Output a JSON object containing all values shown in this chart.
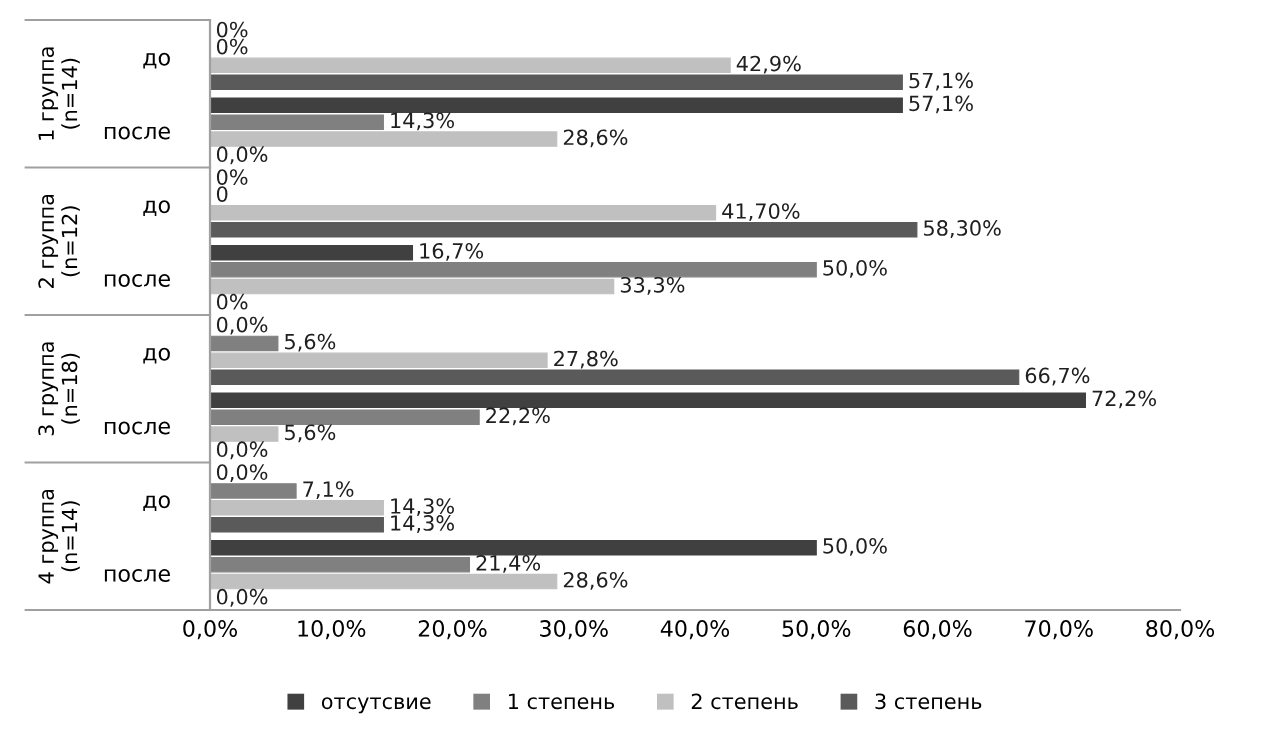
{
  "chart_data": {
    "type": "bar",
    "orientation": "horizontal",
    "categories": [
      "до",
      "после",
      "до",
      "после",
      "до",
      "после",
      "до",
      "после"
    ],
    "series": [
      {
        "name": "отсутсвие",
        "color": "#404040",
        "values": [
          0,
          57.1,
          0,
          16.7,
          0,
          72.2,
          0,
          50.0
        ],
        "value_labels": [
          "0%",
          "57,1%",
          "0%",
          "16,7%",
          "0,0%",
          "72,2%",
          "0,0%",
          "50,0%"
        ]
      },
      {
        "name": "1 степень",
        "color": "#808080",
        "values": [
          0,
          14.3,
          0,
          50.0,
          5.6,
          22.2,
          7.1,
          21.4
        ],
        "value_labels": [
          "0%",
          "14,3%",
          "0",
          "50,0%",
          "5,6%",
          "22,2%",
          "7,1%",
          "21,4%"
        ]
      },
      {
        "name": "2 степень",
        "color": "#c0c0c0",
        "values": [
          42.9,
          28.6,
          41.7,
          33.3,
          27.8,
          5.6,
          14.3,
          28.6
        ],
        "value_labels": [
          "42,9%",
          "28,6%",
          "41,70%",
          "33,3%",
          "27,8%",
          "5,6%",
          "14,3%",
          "28,6%"
        ]
      },
      {
        "name": "3 степень",
        "color": "#5a5a5a",
        "values": [
          57.1,
          0,
          58.3,
          0,
          66.7,
          0,
          14.3,
          0
        ],
        "value_labels": [
          "57,1%",
          "0,0%",
          "58,30%",
          "0%",
          "66,7%",
          "0,0%",
          "14,3%",
          "0,0%"
        ]
      }
    ],
    "xlim": [
      0,
      80
    ],
    "xticks": [
      {
        "value": 0,
        "label": "0,0%"
      },
      {
        "value": 10,
        "label": "10,0%"
      },
      {
        "value": 20,
        "label": "20,0%"
      },
      {
        "value": 30,
        "label": "30,0%"
      },
      {
        "value": 40,
        "label": "40,0%"
      },
      {
        "value": 50,
        "label": "50,0%"
      },
      {
        "value": 60,
        "label": "60,0%"
      },
      {
        "value": 70,
        "label": "70,0%"
      },
      {
        "value": 80,
        "label": "80,0%"
      }
    ],
    "annotations": [
      "1 группа\n(n=14)",
      "2 группа\n(n=12)",
      "3 группа\n(n=18)",
      "4 группа\n(n=14)"
    ],
    "legend": "bottom",
    "grid": false
  }
}
